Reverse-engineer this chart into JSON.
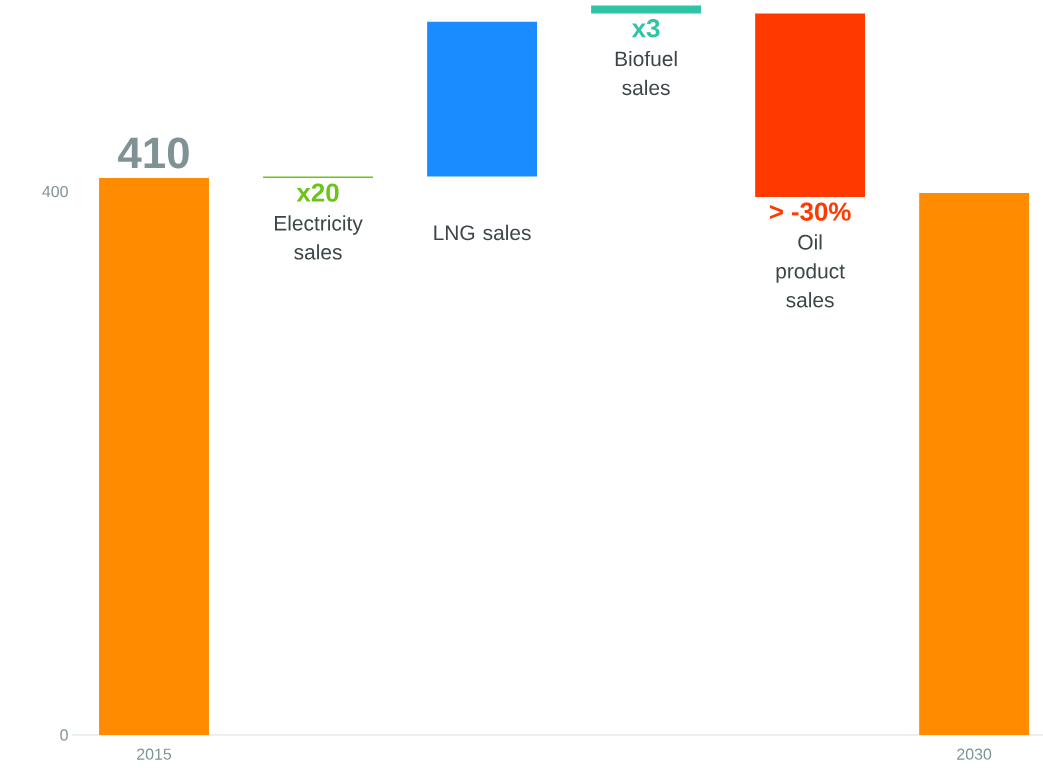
{
  "chart_data": {
    "type": "bar",
    "categories": [
      "2015",
      "Electricity sales",
      "LNG sales",
      "Biofuel sales",
      "Oil product sales",
      "2030"
    ],
    "values": [
      410,
      1,
      114,
      6,
      -135,
      399
    ],
    "base": [
      null,
      410,
      411,
      531,
      531,
      null
    ],
    "colors": [
      "#ff8c00",
      "#6cc417",
      "#1a8cff",
      "#2ec4a6",
      "#ff3a00",
      "#ff8c00"
    ],
    "value_labels": [
      "410",
      "x20",
      null,
      "x3",
      "> -30%",
      null
    ],
    "ylim": [
      0,
      541
    ],
    "yticks": [
      0,
      400
    ]
  }
}
